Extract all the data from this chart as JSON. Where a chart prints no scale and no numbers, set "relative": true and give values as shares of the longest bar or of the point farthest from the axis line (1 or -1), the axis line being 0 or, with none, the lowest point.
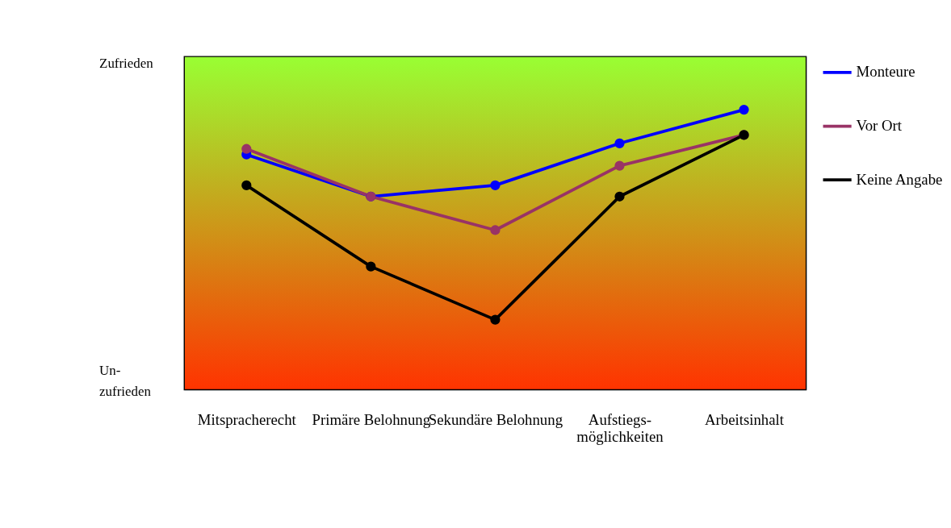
{
  "chart_data": {
    "type": "line",
    "relative": true,
    "categories": [
      "Mitspracherecht",
      "Primäre Belohnung",
      "Sekundäre Belohnung",
      "Aufstiegs-möglichkeiten",
      "Arbeitsinhalt"
    ],
    "series": [
      {
        "name": "Monteure",
        "color": "#0000ff",
        "values": [
          0.84,
          0.69,
          0.73,
          0.88,
          1
        ]
      },
      {
        "name": "Vor Ort",
        "color": "#993366",
        "values": [
          0.86,
          0.69,
          0.57,
          0.8,
          0.91
        ]
      },
      {
        "name": "Keine Angabe",
        "color": "#000000",
        "values": [
          0.73,
          0.44,
          0.25,
          0.69,
          0.91
        ]
      }
    ],
    "annotations": [
      "Zufrieden",
      "Un-zufrieden"
    ],
    "marker": "circle",
    "line_style": "solid",
    "legend": "right"
  }
}
